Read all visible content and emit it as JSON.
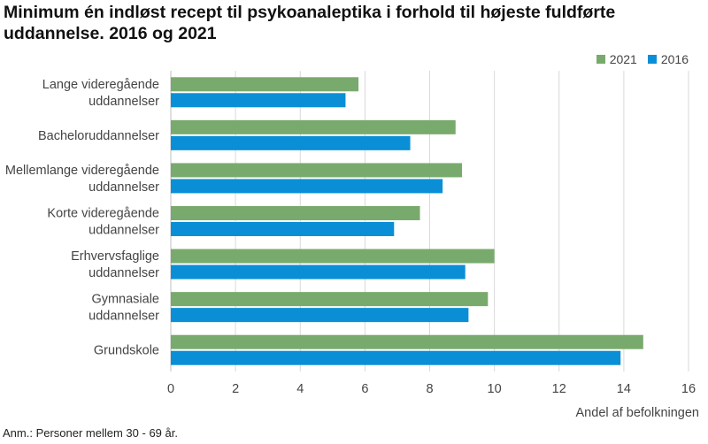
{
  "title": "Minimum én indløst recept til psykoanaleptika i forhold til højeste fuldførte uddannelse. 2016 og 2021",
  "note": "Anm.: Personer mellem 30 - 69 år.",
  "colors": {
    "s2021": "#79aa6d",
    "s2016": "#0a8fd6",
    "grid": "#d9d9d9"
  },
  "chart_data": {
    "type": "bar",
    "orientation": "horizontal",
    "title": "Minimum én indløst recept til psykoanaleptika i forhold til højeste fuldførte uddannelse. 2016 og 2021",
    "categories": [
      [
        "Lange videregående",
        "uddannelser"
      ],
      [
        "Bacheloruddannelser"
      ],
      [
        "Mellemlange videregående",
        "uddannelser"
      ],
      [
        "Korte videregående",
        "uddannelser"
      ],
      [
        "Erhvervsfaglige",
        "uddannelser"
      ],
      [
        "Gymnasiale",
        "uddannelser"
      ],
      [
        "Grundskole"
      ]
    ],
    "series": [
      {
        "name": "2021",
        "values": [
          5.8,
          8.8,
          9.0,
          7.7,
          10.0,
          9.8,
          14.6
        ]
      },
      {
        "name": "2016",
        "values": [
          5.4,
          7.4,
          8.4,
          6.9,
          9.1,
          9.2,
          13.9
        ]
      }
    ],
    "xlim": [
      0,
      16
    ],
    "xticks": [
      "0",
      "2",
      "4",
      "6",
      "8",
      "10",
      "12",
      "14",
      "16"
    ],
    "xlabel": "Andel af befolkningen",
    "ylabel": "",
    "legend": "top-right",
    "grid": true
  }
}
